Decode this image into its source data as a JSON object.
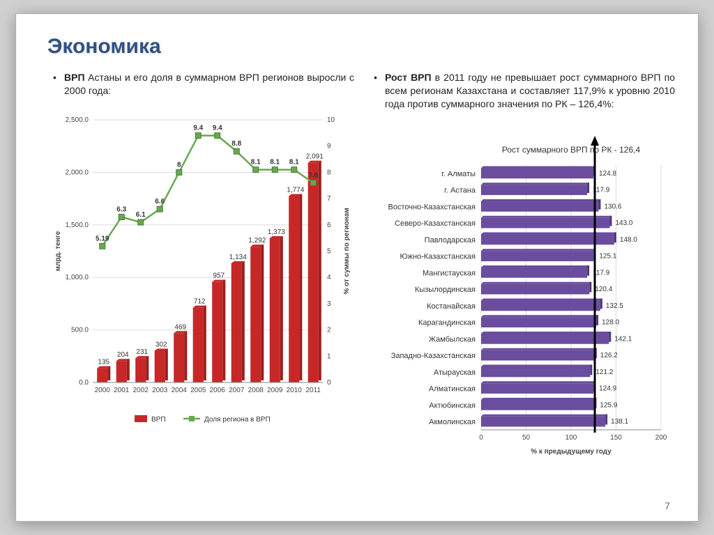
{
  "slide": {
    "title": "Экономика",
    "page_number": "7"
  },
  "left": {
    "bullet_prefix": "ВРП",
    "bullet_rest": " Астаны и его доля в суммарном ВРП регионов выросли с 2000 года:",
    "chart": {
      "type": "bar+line",
      "categories": [
        "2000",
        "2001",
        "2002",
        "2003",
        "2004",
        "2005",
        "2006",
        "2007",
        "2008",
        "2009",
        "2010",
        "2011"
      ],
      "bars": [
        135,
        204,
        231,
        302,
        469,
        712,
        957,
        1134,
        1292,
        1373,
        1774,
        2091
      ],
      "line": [
        5.19,
        6.3,
        6.1,
        6.6,
        8.0,
        9.4,
        9.4,
        8.8,
        8.1,
        8.1,
        8.1,
        7.6
      ],
      "bar_label_overrides": {
        "7": "1,134",
        "8": "1,292",
        "9": "1,373",
        "10": "1,774",
        "11": "2,091"
      },
      "bar_color": "#c62828",
      "bar_color_dark": "#9a1f1f",
      "line_color": "#6aa84f",
      "marker_color": "#6aa84f",
      "y1_label": "млрд. тенге",
      "y2_label": "% от суммы по регионам",
      "y1_ticks": [
        "0.0",
        "500.0",
        "1,000.0",
        "1,500.0",
        "2,000.0",
        "2,500.0"
      ],
      "y1_max": 2500,
      "y2_ticks": [
        "0",
        "1",
        "2",
        "3",
        "4",
        "5",
        "6",
        "7",
        "8",
        "9",
        "10"
      ],
      "y2_max": 10,
      "legend_bar": "ВРП",
      "legend_line": "Доля региона в ВРП",
      "grid_color": "#dcdcdc",
      "bg": "#ffffff"
    }
  },
  "right": {
    "bullet_prefix": "Рост ВРП",
    "bullet_rest": " в 2011 году не превышает рост суммарного ВРП по всем регионам Казахстана и составляет 117,9% к уровню 2010 года против суммарного значения по РК – 126,4%:",
    "chart": {
      "type": "hbar",
      "subtitle": "Рост суммарного ВРП по РК - 126,4",
      "x_label": "% к предыдущему году",
      "categories": [
        "г. Алматы",
        "г. Астана",
        "Восточно-Казахстанская",
        "Северо-Казахстанская",
        "Павлодарская",
        "Южно-Казахстанская",
        "Мангистауская",
        "Кызылординская",
        "Костанайская",
        "Карагандинская",
        "Жамбылская",
        "Западно-Казахстанская",
        "Атырауская",
        "Алматинская",
        "Актюбинская",
        "Акмолинская"
      ],
      "values": [
        124.8,
        117.9,
        130.6,
        143.0,
        148.0,
        125.1,
        117.9,
        120.4,
        132.5,
        128.0,
        142.1,
        126.2,
        121.2,
        124.9,
        125.9,
        138.1
      ],
      "value_labels": [
        "124.8",
        "117.9",
        "130.6",
        "143.0",
        "148.0",
        "125.1",
        "117.9",
        "120.4",
        "132.5",
        "128.0",
        "142.1",
        "126.2",
        "121.2",
        "124.9",
        "125.9",
        "138.1"
      ],
      "bar_color": "#6a4d9e",
      "bar_color_dark": "#4f3878",
      "x_ticks": [
        "0",
        "50",
        "100",
        "150",
        "200"
      ],
      "x_max": 200,
      "ref_line_x": 126.4,
      "grid_color": "#dcdcdc"
    }
  }
}
